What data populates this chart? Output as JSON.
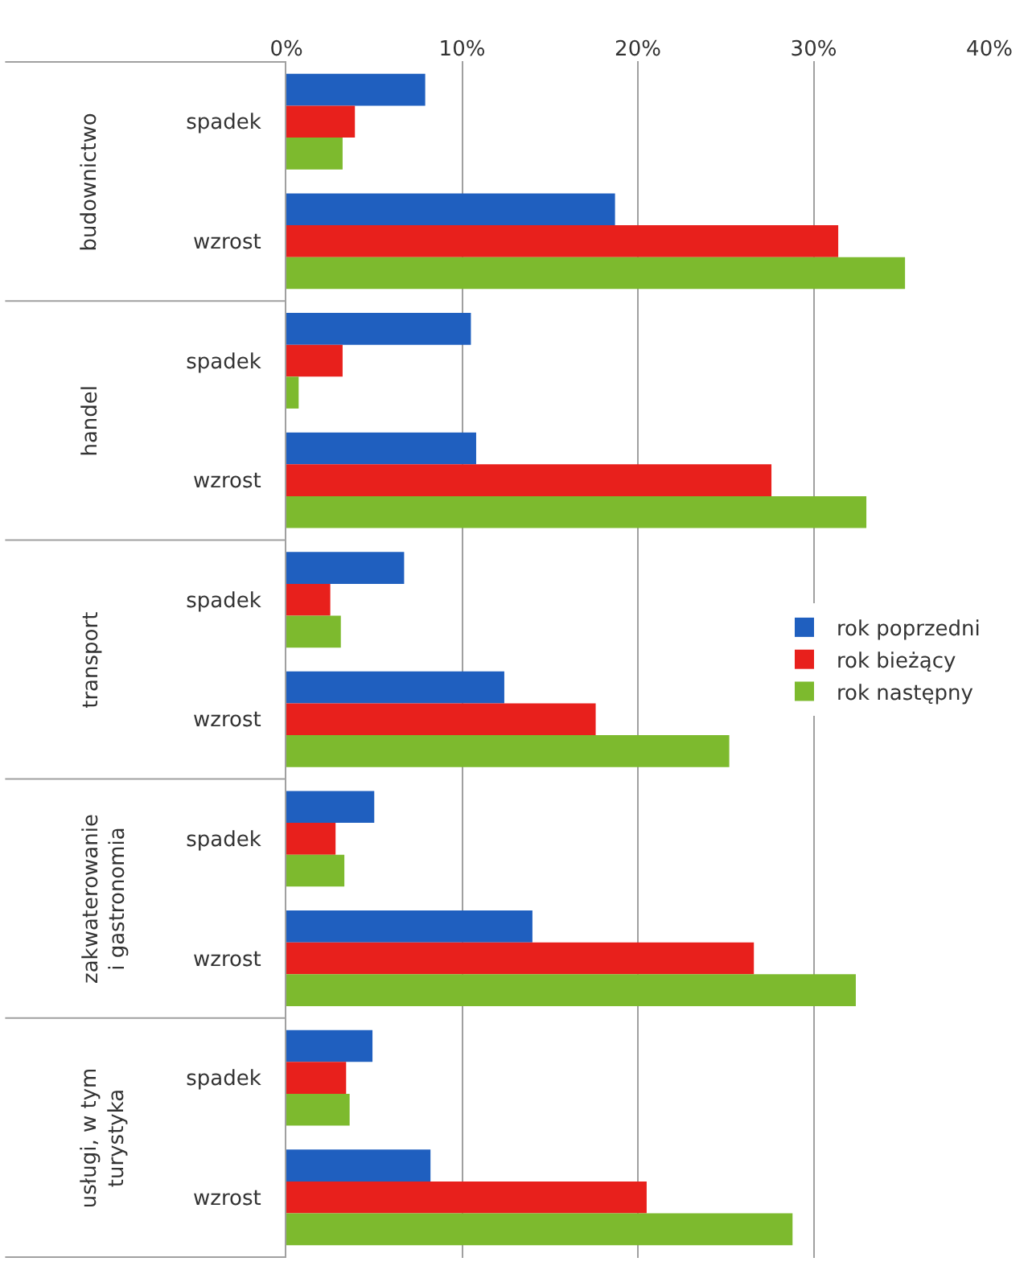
{
  "chart_data": {
    "type": "bar",
    "orientation": "horizontal",
    "categories": [
      "spadek",
      "wzrost",
      "spadek",
      "wzrost",
      "spadek",
      "wzrost",
      "spadek",
      "wzrost",
      "spadek",
      "wzrost"
    ],
    "annotations": [
      "budownictwo",
      "handel",
      "transport",
      "zakwaterowanie\ni gastronomia",
      "usługi, w tym\nturystyka"
    ],
    "series": [
      {
        "name": "rok poprzedni",
        "color": "#1f5fbf",
        "values": [
          7.9,
          18.7,
          10.5,
          10.8,
          6.7,
          12.4,
          5.0,
          14.0,
          4.9,
          8.2
        ]
      },
      {
        "name": "rok bieżący",
        "color": "#e8201c",
        "values": [
          3.9,
          31.4,
          3.2,
          27.6,
          2.5,
          17.6,
          2.8,
          26.6,
          3.4,
          20.5
        ]
      },
      {
        "name": "rok następny",
        "color": "#7dba2e",
        "values": [
          3.2,
          35.2,
          0.7,
          33.0,
          3.1,
          25.2,
          3.3,
          32.4,
          3.6,
          28.8
        ]
      }
    ],
    "xlim": [
      0,
      40
    ],
    "xticks": [
      {
        "value": 0,
        "label": "0%"
      },
      {
        "value": 10,
        "label": "10%"
      },
      {
        "value": 20,
        "label": "20%"
      },
      {
        "value": 30,
        "label": "30%"
      },
      {
        "value": 40,
        "label": "40%"
      }
    ],
    "grid": "x",
    "legend": "right"
  }
}
